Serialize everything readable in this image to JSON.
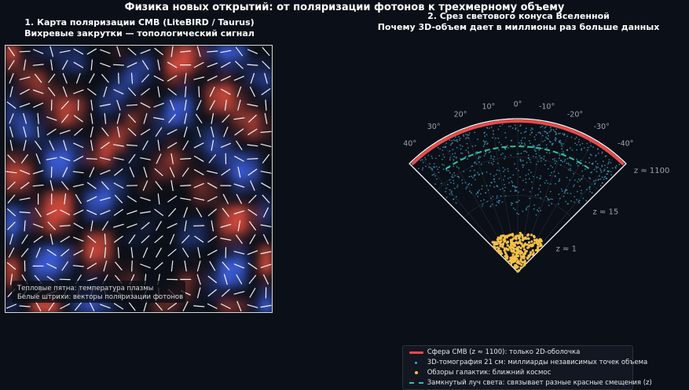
{
  "suptitle": "Физика новых открытий: от поляризации фотонов к трехмерному объему",
  "panels": {
    "left": {
      "title_line1": "1. Карта поляризации CMB (LiteBIRD / Taurus)",
      "title_line2": "Вихревые закрутки — топологический сигнал",
      "annotation_line1": "Тепловые пятна: температура плазмы",
      "annotation_line2": "Белые штрихи: векторы поляризации фотонов"
    },
    "right": {
      "title_line1": "2. Срез светового конуса Вселенной",
      "title_line2": "Почему 3D-объем дает в миллионы раз больше данных"
    }
  },
  "chart_data": [
    {
      "type": "heatmap",
      "title": "1. Карта поляризации CMB (LiteBIRD / Taurus)",
      "subtitle": "Вихревые закрутки — топологический сигнал",
      "colormap": [
        "#3b5bd6",
        "#0b0f17",
        "#d04a3c"
      ],
      "overlay": "polarization-vectors",
      "grid_cells": [
        20,
        20
      ],
      "grid": false
    },
    {
      "type": "scatter",
      "projection": "polar-wedge",
      "title": "2. Срез светового конуса Вселенной",
      "subtitle": "Почему 3D-объем дает в миллионы раз больше данных",
      "theta_range_deg": [
        -45,
        45
      ],
      "theta_ticks": [
        "40°",
        "30°",
        "20°",
        "10°",
        "0°",
        "-10°",
        "-20°",
        "-30°",
        "-40°"
      ],
      "theta_tick_values": [
        40,
        30,
        20,
        10,
        0,
        -10,
        -20,
        -30,
        -40
      ],
      "radial_labels": [
        "z ≈ 1",
        "z ≈ 15",
        "z ≈ 1100"
      ],
      "radial_label_positions": [
        0.28,
        0.62,
        1.0
      ],
      "series": [
        {
          "name": "Сфера CMB (z ≈ 1100): только 2D-оболочка",
          "kind": "arc",
          "r": 0.985,
          "theta_range": [
            -44,
            44
          ],
          "color": "#e84a4a"
        },
        {
          "name": "3D-томография 21 см: миллиарды независимых точек объема",
          "kind": "points",
          "r_range": [
            0.35,
            0.97
          ],
          "count": 700,
          "color": "#3fa7c9"
        },
        {
          "name": "Обзоры галактик: ближний космос",
          "kind": "points",
          "r_range": [
            0.0,
            0.26
          ],
          "count": 260,
          "color": "#f5c04a"
        },
        {
          "name": "Замкнутый луч света: связывает разные красные смещения (z)",
          "kind": "dashed-arc",
          "r": 0.82,
          "theta_range": [
            -35,
            35
          ],
          "color": "#2ec4a0"
        }
      ]
    }
  ],
  "legend": {
    "items": [
      {
        "label": "Сфера CMB (z ≈ 1100): только 2D-оболочка",
        "symbol": "line",
        "color": "#e84a4a"
      },
      {
        "label": "3D-томография 21 см: миллиарды независимых точек объема",
        "symbol": "dot",
        "color": "#3fa7c9"
      },
      {
        "label": "Обзоры галактик: ближний космос",
        "symbol": "dot",
        "color": "#f5c04a"
      },
      {
        "label": "Замкнутый луч света: связывает разные красные смещения (z)",
        "symbol": "dash",
        "color": "#2ec4a0"
      }
    ]
  }
}
